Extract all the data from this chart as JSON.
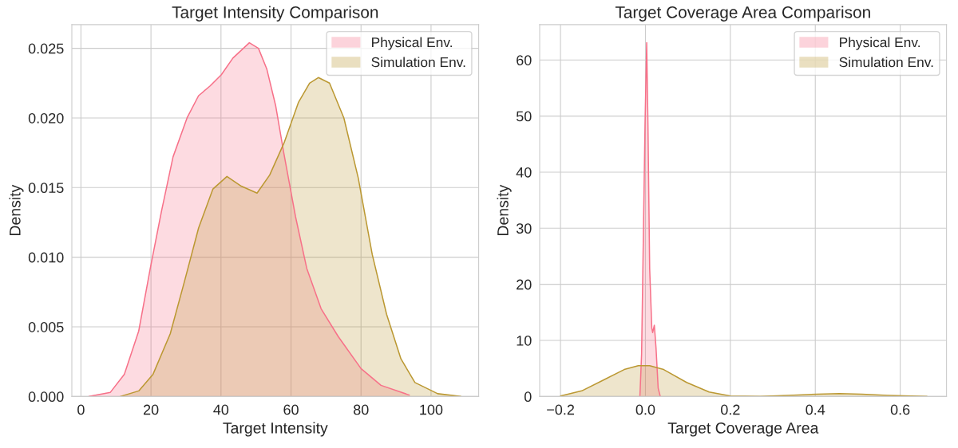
{
  "chart_data": [
    {
      "type": "area",
      "title": "Target Intensity Comparison",
      "xlabel": "Target Intensity",
      "ylabel": "Density",
      "xlim": [
        -2.6,
        113.6
      ],
      "ylim": [
        0,
        0.0267
      ],
      "xticks": [
        0,
        20,
        40,
        60,
        80,
        100
      ],
      "yticks": [
        {
          "value": 0,
          "label": "0.000"
        },
        {
          "value": 0.005,
          "label": "0.005"
        },
        {
          "value": 0.01,
          "label": "0.010"
        },
        {
          "value": 0.015,
          "label": "0.015"
        },
        {
          "value": 0.02,
          "label": "0.020"
        },
        {
          "value": 0.025,
          "label": "0.025"
        }
      ],
      "grid": true,
      "legend": "top right",
      "series": [
        {
          "name": "Physical Env.",
          "color": "#f77189",
          "x": [
            2.3,
            8.4,
            12.4,
            16.5,
            19.8,
            23.0,
            26.3,
            30.3,
            33.6,
            36.9,
            40.1,
            43.4,
            48.1,
            50.7,
            53.1,
            55.6,
            58.0,
            61.3,
            64.5,
            68.6,
            73.5,
            80.0,
            85.7,
            93.8
          ],
          "values": [
            0,
            0.0003,
            0.0016,
            0.0047,
            0.0092,
            0.0133,
            0.0172,
            0.02,
            0.0216,
            0.0223,
            0.0231,
            0.0243,
            0.0254,
            0.025,
            0.0235,
            0.0209,
            0.0174,
            0.0129,
            0.0092,
            0.0063,
            0.0043,
            0.002,
            0.0008,
            0.0001
          ]
        },
        {
          "name": "Simulation Env.",
          "color": "#bb9832",
          "x": [
            11.2,
            16.5,
            20.6,
            25.5,
            29.5,
            33.6,
            37.7,
            41.7,
            45.8,
            50.3,
            53.9,
            58.0,
            62.1,
            65.3,
            67.8,
            71.0,
            75.1,
            79.2,
            83.2,
            87.3,
            91.4,
            95.4,
            101.9,
            108.5
          ],
          "values": [
            0,
            0.0004,
            0.0016,
            0.0045,
            0.0082,
            0.0121,
            0.0149,
            0.0158,
            0.0151,
            0.0146,
            0.0159,
            0.0182,
            0.0211,
            0.0225,
            0.0229,
            0.0225,
            0.02,
            0.0157,
            0.0102,
            0.0059,
            0.0027,
            0.001,
            0.0002,
            0
          ]
        }
      ]
    },
    {
      "type": "area",
      "title": "Target Coverage Area Comparison",
      "xlabel": "Target Coverage Area",
      "ylabel": "Density",
      "xlim": [
        -0.249,
        0.709
      ],
      "ylim": [
        0,
        66.3
      ],
      "xticks": [
        {
          "value": -0.2,
          "label": "−0.2"
        },
        {
          "value": 0,
          "label": "0.0"
        },
        {
          "value": 0.2,
          "label": "0.2"
        },
        {
          "value": 0.4,
          "label": "0.4"
        },
        {
          "value": 0.6,
          "label": "0.6"
        }
      ],
      "yticks": [
        0,
        10,
        20,
        30,
        40,
        50,
        60
      ],
      "grid": true,
      "legend": "top right",
      "series": [
        {
          "name": "Physical Env.",
          "color": "#f77189",
          "x": [
            -0.013,
            -0.009,
            -0.005,
            -0.001,
            0.003,
            0.006,
            0.01,
            0.015,
            0.017,
            0.021,
            0.025,
            0.03,
            0.035
          ],
          "values": [
            0,
            7.6,
            27.9,
            48.2,
            63.1,
            48.2,
            22.8,
            12.2,
            11.4,
            12.7,
            8.6,
            1.5,
            0
          ]
        },
        {
          "name": "Simulation Env.",
          "color": "#bb9832",
          "x": [
            -0.2,
            -0.15,
            -0.097,
            -0.05,
            -0.017,
            0.01,
            0.043,
            0.097,
            0.15,
            0.2,
            0.27,
            0.337,
            0.403,
            0.457,
            0.51,
            0.57,
            0.663
          ],
          "values": [
            0.1,
            1.0,
            3.0,
            4.8,
            5.5,
            5.5,
            4.8,
            2.5,
            0.8,
            0.1,
            0,
            0.2,
            0.4,
            0.5,
            0.4,
            0.2,
            0
          ]
        }
      ]
    }
  ]
}
